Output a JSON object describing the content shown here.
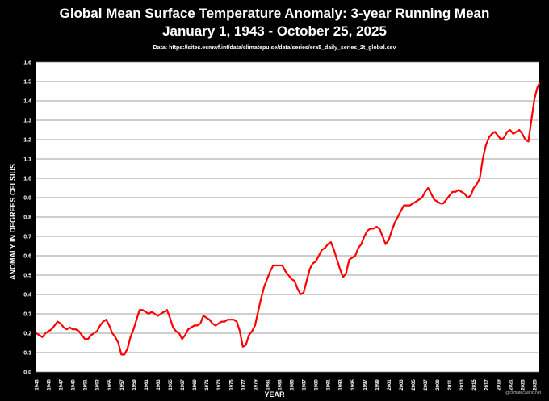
{
  "chart_data": {
    "type": "line",
    "title": "Global Mean Surface Temperature Anomaly: 3-year Running Mean",
    "subtitle": "January 1, 1943 - October 25, 2025",
    "source": "Data: https://sites.ecmwf.int/data/climatepulse/data/series/era5_daily_series_2t_global.csv",
    "xlabel": "YEAR",
    "ylabel": "ANOMALY IN DEGREES CELSIUS",
    "watermark": "@climatecasino.net",
    "xlim": [
      1943,
      2025.8
    ],
    "ylim": [
      0,
      1.6
    ],
    "grid": true,
    "line_color": "#ff0000",
    "x_ticks": [
      "1943",
      "1945",
      "1947",
      "1949",
      "1951",
      "1953",
      "1955",
      "1957",
      "1959",
      "1961",
      "1963",
      "1965",
      "1967",
      "1969",
      "1971",
      "1973",
      "1975",
      "1977",
      "1979",
      "1981",
      "1983",
      "1985",
      "1987",
      "1989",
      "1991",
      "1993",
      "1995",
      "1997",
      "1999",
      "2001",
      "2003",
      "2005",
      "2007",
      "2009",
      "2011",
      "2013",
      "2015",
      "2017",
      "2019",
      "2021",
      "2023",
      "2025"
    ],
    "y_ticks": [
      "0.0",
      "0.1",
      "0.2",
      "0.3",
      "0.4",
      "0.5",
      "0.6",
      "0.7",
      "0.8",
      "0.9",
      "1.0",
      "1.1",
      "1.2",
      "1.3",
      "1.4",
      "1.5",
      "1.6"
    ],
    "series": [
      {
        "x": [
          1943,
          1943.5,
          1944,
          1944.5,
          1945,
          1945.5,
          1946,
          1946.5,
          1947,
          1947.5,
          1948,
          1948.5,
          1949,
          1949.5,
          1950,
          1950.5,
          1951,
          1951.5,
          1952,
          1952.5,
          1953,
          1953.5,
          1954,
          1954.5,
          1955,
          1955.5,
          1956,
          1956.5,
          1957,
          1957.5,
          1958,
          1958.5,
          1959,
          1959.5,
          1960,
          1960.5,
          1961,
          1961.5,
          1962,
          1962.5,
          1963,
          1963.5,
          1964,
          1964.5,
          1965,
          1965.5,
          1966,
          1966.5,
          1967,
          1967.5,
          1968,
          1968.5,
          1969,
          1969.5,
          1970,
          1970.5,
          1971,
          1971.5,
          1972,
          1972.5,
          1973,
          1973.5,
          1974,
          1974.5,
          1975,
          1975.5,
          1976,
          1976.5,
          1977,
          1977.5,
          1978,
          1978.5,
          1979,
          1979.5,
          1980,
          1980.5,
          1981,
          1981.5,
          1982,
          1982.5,
          1983,
          1983.5,
          1984,
          1984.5,
          1985,
          1985.5,
          1986,
          1986.5,
          1987,
          1987.5,
          1988,
          1988.5,
          1989,
          1989.5,
          1990,
          1990.5,
          1991,
          1991.5,
          1992,
          1992.5,
          1993,
          1993.5,
          1994,
          1994.5,
          1995,
          1995.5,
          1996,
          1996.5,
          1997,
          1997.5,
          1998,
          1998.5,
          1999,
          1999.5,
          2000,
          2000.5,
          2001,
          2001.5,
          2002,
          2002.5,
          2003,
          2003.5,
          2004,
          2004.5,
          2005,
          2005.5,
          2006,
          2006.5,
          2007,
          2007.5,
          2008,
          2008.5,
          2009,
          2009.5,
          2010,
          2010.5,
          2011,
          2011.5,
          2012,
          2012.5,
          2013,
          2013.5,
          2014,
          2014.5,
          2015,
          2015.5,
          2016,
          2016.5,
          2017,
          2017.5,
          2018,
          2018.5,
          2019,
          2019.5,
          2020,
          2020.5,
          2021,
          2021.5,
          2022,
          2022.5,
          2023,
          2023.5,
          2024,
          2024.5,
          2025,
          2025.5,
          2025.8
        ],
        "y": [
          0.2,
          0.19,
          0.18,
          0.2,
          0.21,
          0.22,
          0.24,
          0.26,
          0.25,
          0.23,
          0.22,
          0.23,
          0.22,
          0.22,
          0.21,
          0.19,
          0.17,
          0.17,
          0.19,
          0.2,
          0.21,
          0.24,
          0.26,
          0.27,
          0.24,
          0.2,
          0.18,
          0.15,
          0.09,
          0.09,
          0.12,
          0.18,
          0.22,
          0.27,
          0.32,
          0.32,
          0.31,
          0.3,
          0.31,
          0.3,
          0.29,
          0.3,
          0.31,
          0.32,
          0.28,
          0.23,
          0.21,
          0.2,
          0.17,
          0.19,
          0.22,
          0.23,
          0.24,
          0.24,
          0.25,
          0.29,
          0.28,
          0.27,
          0.25,
          0.24,
          0.25,
          0.26,
          0.26,
          0.27,
          0.27,
          0.27,
          0.26,
          0.21,
          0.13,
          0.14,
          0.19,
          0.21,
          0.24,
          0.31,
          0.38,
          0.44,
          0.48,
          0.52,
          0.55,
          0.55,
          0.55,
          0.55,
          0.52,
          0.5,
          0.48,
          0.47,
          0.43,
          0.4,
          0.41,
          0.47,
          0.53,
          0.56,
          0.57,
          0.6,
          0.63,
          0.64,
          0.66,
          0.67,
          0.63,
          0.58,
          0.53,
          0.49,
          0.51,
          0.58,
          0.59,
          0.6,
          0.64,
          0.66,
          0.7,
          0.73,
          0.74,
          0.74,
          0.75,
          0.74,
          0.7,
          0.66,
          0.68,
          0.73,
          0.77,
          0.8,
          0.83,
          0.86,
          0.86,
          0.86,
          0.87,
          0.88,
          0.89,
          0.9,
          0.93,
          0.95,
          0.92,
          0.89,
          0.88,
          0.87,
          0.87,
          0.89,
          0.91,
          0.93,
          0.93,
          0.94,
          0.93,
          0.92,
          0.9,
          0.91,
          0.95,
          0.97,
          1.0,
          1.1,
          1.17,
          1.21,
          1.23,
          1.24,
          1.22,
          1.2,
          1.21,
          1.24,
          1.25,
          1.23,
          1.24,
          1.25,
          1.23,
          1.2,
          1.19,
          1.3,
          1.41,
          1.47,
          1.49
        ]
      }
    ]
  }
}
